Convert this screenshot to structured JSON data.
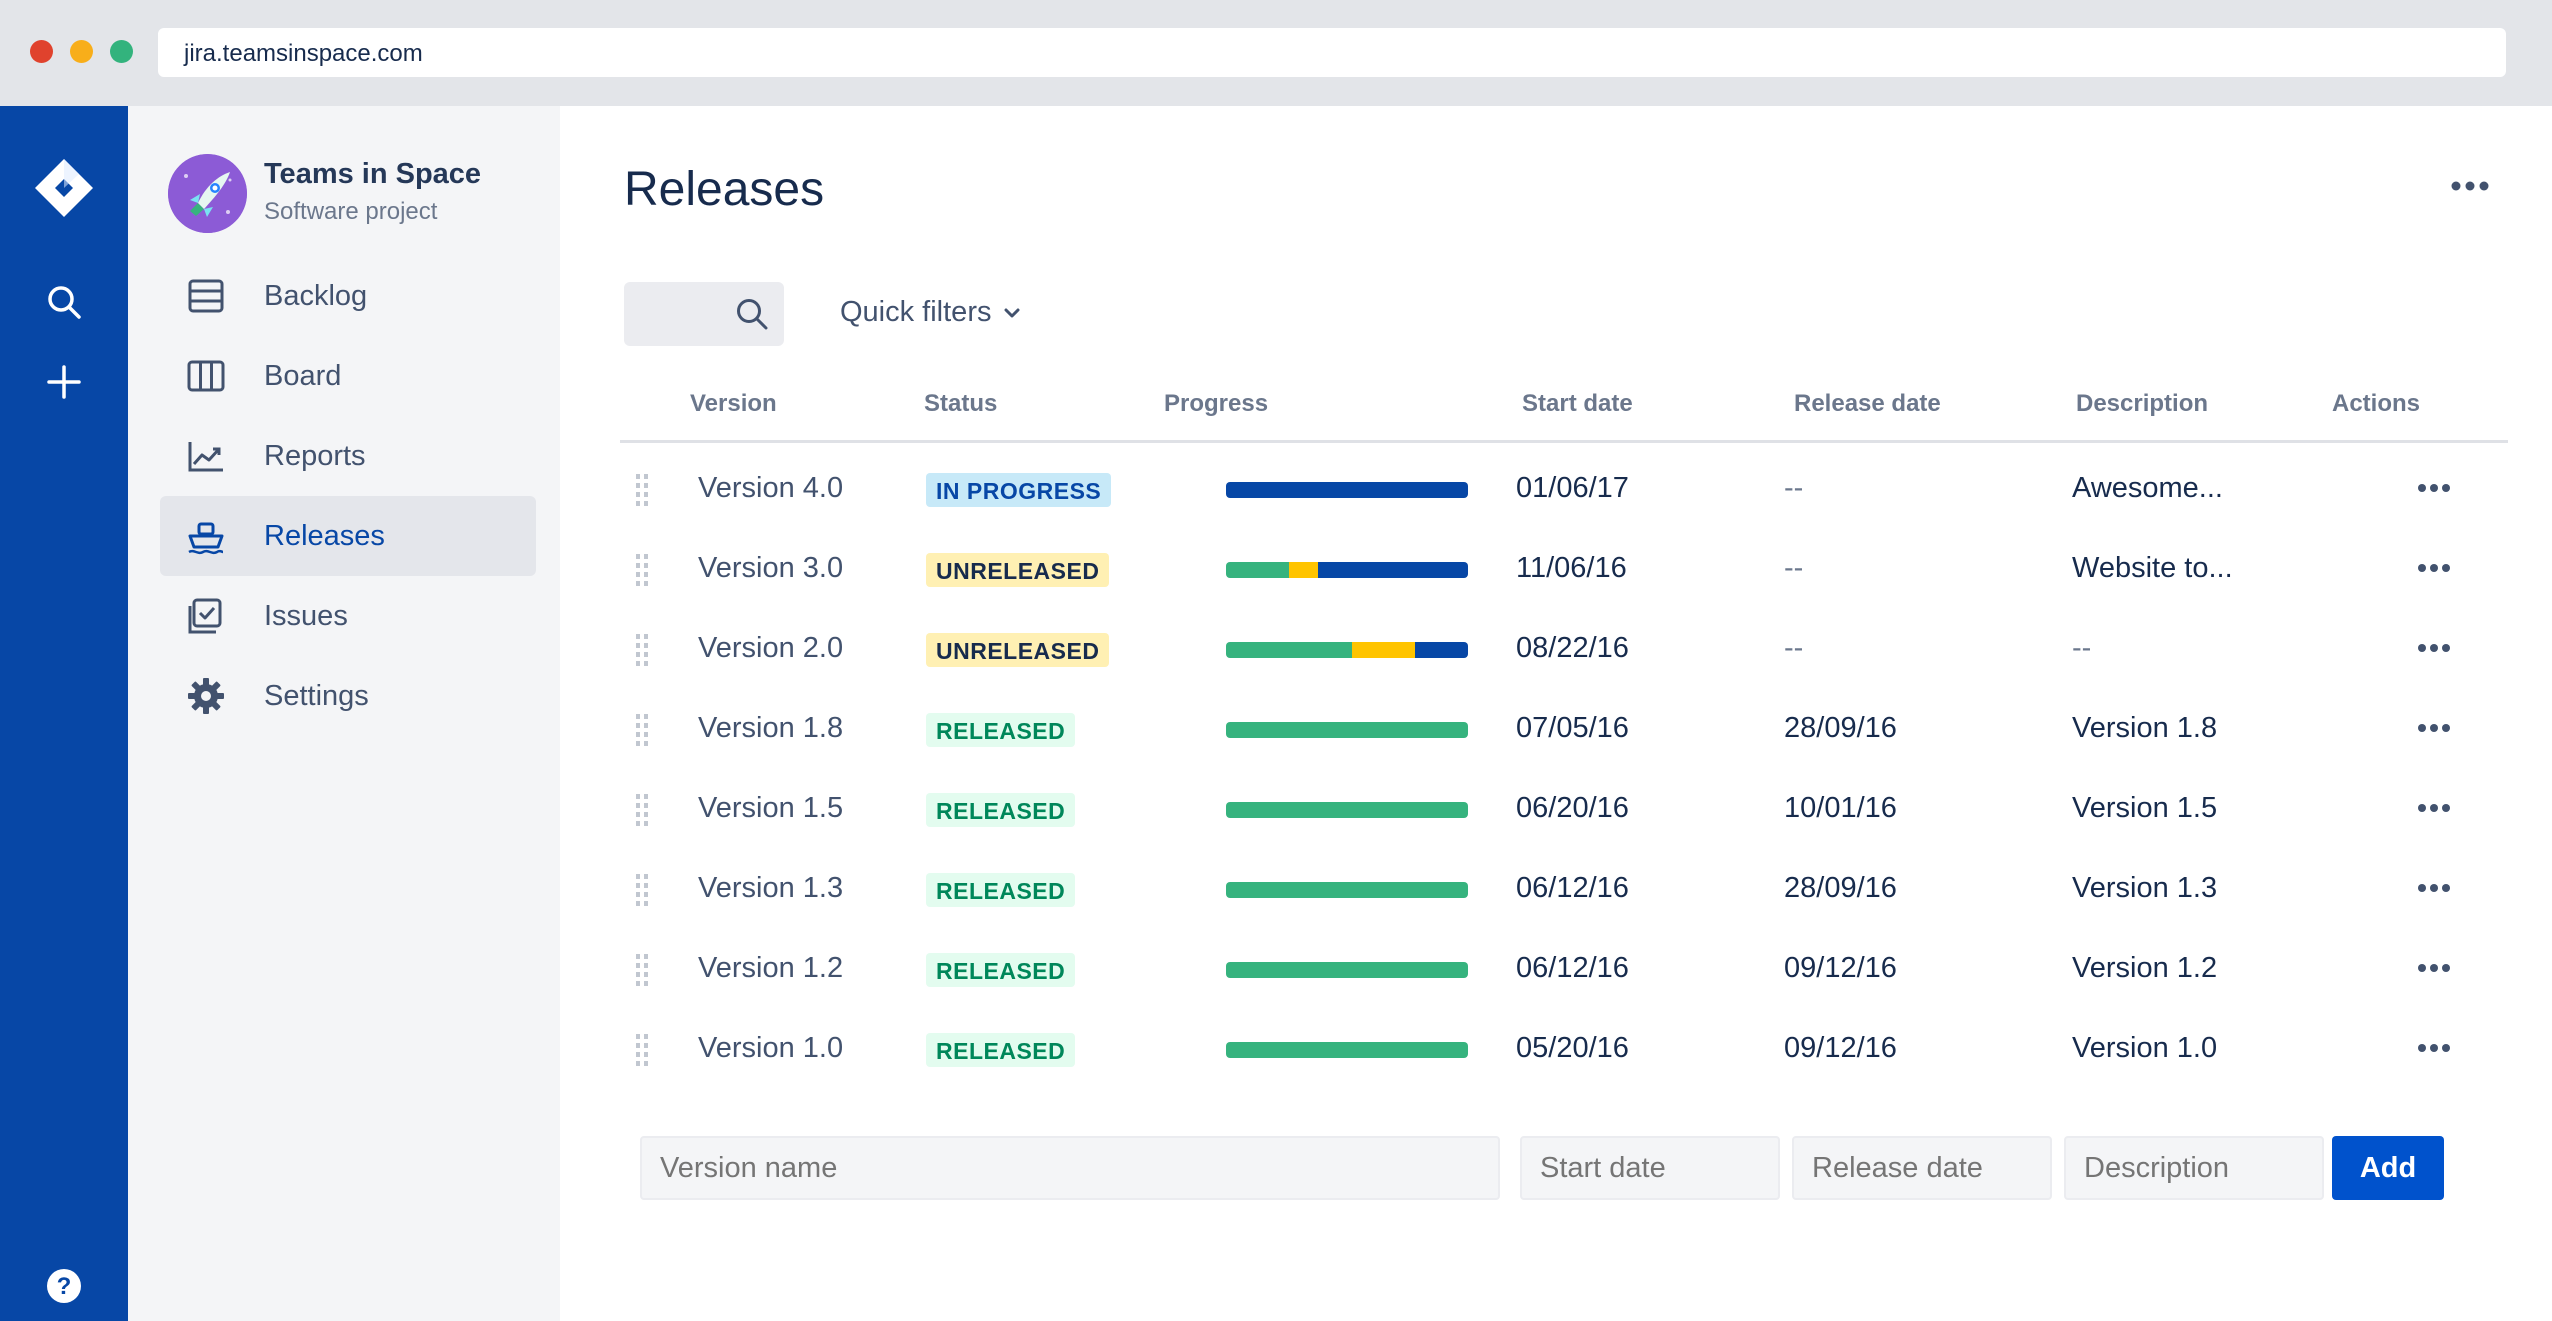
{
  "browser": {
    "url": "jira.teamsinspace.com"
  },
  "project": {
    "name": "Teams in Space",
    "type": "Software project"
  },
  "sidebar": {
    "items": [
      {
        "label": "Backlog",
        "icon": "backlog-icon",
        "active": false
      },
      {
        "label": "Board",
        "icon": "board-icon",
        "active": false
      },
      {
        "label": "Reports",
        "icon": "reports-icon",
        "active": false
      },
      {
        "label": "Releases",
        "icon": "releases-icon",
        "active": true
      },
      {
        "label": "Issues",
        "icon": "issues-icon",
        "active": false
      },
      {
        "label": "Settings",
        "icon": "gear-icon",
        "active": false
      }
    ]
  },
  "page": {
    "title": "Releases"
  },
  "toolbar": {
    "quick_filters": "Quick filters"
  },
  "table": {
    "headers": {
      "version": "Version",
      "status": "Status",
      "progress": "Progress",
      "start": "Start date",
      "release": "Release date",
      "description": "Description",
      "actions": "Actions"
    },
    "rows": [
      {
        "version": "Version 4.0",
        "status": "IN PROGRESS",
        "status_kind": "inprogress",
        "progress": {
          "done": 0,
          "inprogress": 0,
          "todo": 1
        },
        "start": "01/06/17",
        "release": "--",
        "description": "Awesome..."
      },
      {
        "version": "Version 3.0",
        "status": "UNRELEASED",
        "status_kind": "unreleased",
        "progress": {
          "done": 0.26,
          "inprogress": 0.12,
          "todo": 0.62
        },
        "start": "11/06/16",
        "release": "--",
        "description": "Website to..."
      },
      {
        "version": "Version 2.0",
        "status": "UNRELEASED",
        "status_kind": "unreleased",
        "progress": {
          "done": 0.52,
          "inprogress": 0.26,
          "todo": 0.22
        },
        "start": "08/22/16",
        "release": "--",
        "description": "--"
      },
      {
        "version": "Version 1.8",
        "status": "RELEASED",
        "status_kind": "released",
        "progress": {
          "done": 1,
          "inprogress": 0,
          "todo": 0
        },
        "start": "07/05/16",
        "release": "28/09/16",
        "description": "Version 1.8"
      },
      {
        "version": "Version 1.5",
        "status": "RELEASED",
        "status_kind": "released",
        "progress": {
          "done": 1,
          "inprogress": 0,
          "todo": 0
        },
        "start": "06/20/16",
        "release": "10/01/16",
        "description": "Version 1.5"
      },
      {
        "version": "Version 1.3",
        "status": "RELEASED",
        "status_kind": "released",
        "progress": {
          "done": 1,
          "inprogress": 0,
          "todo": 0
        },
        "start": "06/12/16",
        "release": "28/09/16",
        "description": "Version 1.3"
      },
      {
        "version": "Version 1.2",
        "status": "RELEASED",
        "status_kind": "released",
        "progress": {
          "done": 1,
          "inprogress": 0,
          "todo": 0
        },
        "start": "06/12/16",
        "release": "09/12/16",
        "description": "Version 1.2"
      },
      {
        "version": "Version 1.0",
        "status": "RELEASED",
        "status_kind": "released",
        "progress": {
          "done": 1,
          "inprogress": 0,
          "todo": 0
        },
        "start": "05/20/16",
        "release": "09/12/16",
        "description": "Version 1.0"
      }
    ]
  },
  "add_form": {
    "version_placeholder": "Version name",
    "start_placeholder": "Start date",
    "release_placeholder": "Release date",
    "description_placeholder": "Description",
    "add_label": "Add"
  },
  "colors": {
    "brand": "#0747A6",
    "done": "#36B37E",
    "inprogress": "#FFC400",
    "todo": "#0747A6",
    "primary_button": "#0052CC"
  }
}
